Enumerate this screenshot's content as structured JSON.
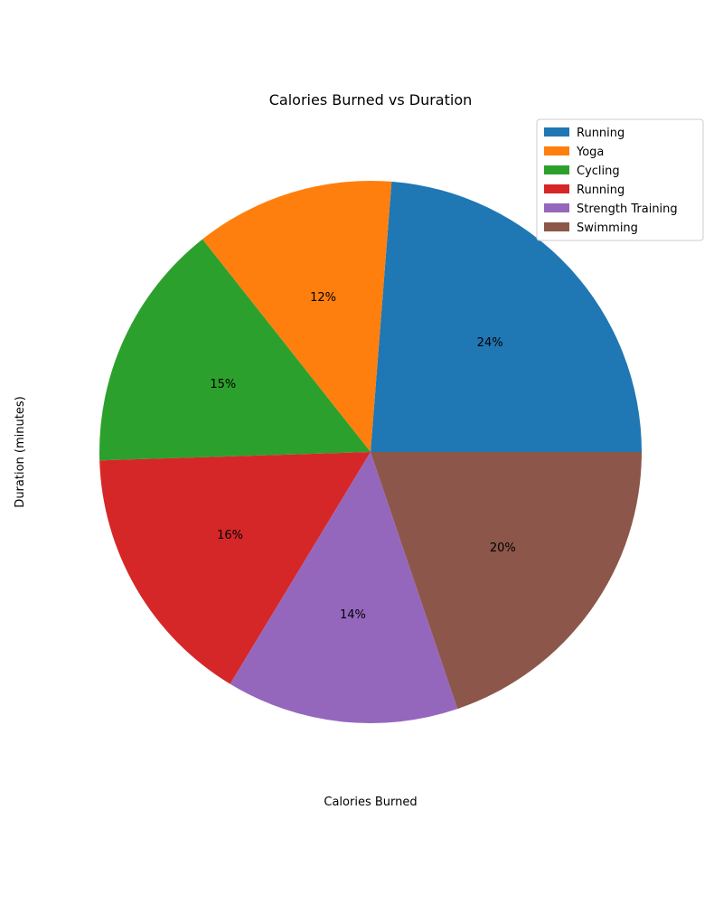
{
  "chart_data": {
    "type": "pie",
    "title": "Calories Burned vs Duration",
    "xlabel": "Calories Burned",
    "ylabel": "Duration (minutes)",
    "autopct_format": "%",
    "legend_position": "upper right",
    "start_angle_deg": 0,
    "direction": "counterclockwise",
    "slices": [
      {
        "label": "Running",
        "value": 24,
        "color": "#1f77b4"
      },
      {
        "label": "Yoga",
        "value": 12,
        "color": "#ff7f0e"
      },
      {
        "label": "Cycling",
        "value": 15,
        "color": "#2ca02c"
      },
      {
        "label": "Running",
        "value": 16,
        "color": "#d62728"
      },
      {
        "label": "Strength Training",
        "value": 14,
        "color": "#9467bd"
      },
      {
        "label": "Swimming",
        "value": 20,
        "color": "#8c564b"
      }
    ]
  }
}
